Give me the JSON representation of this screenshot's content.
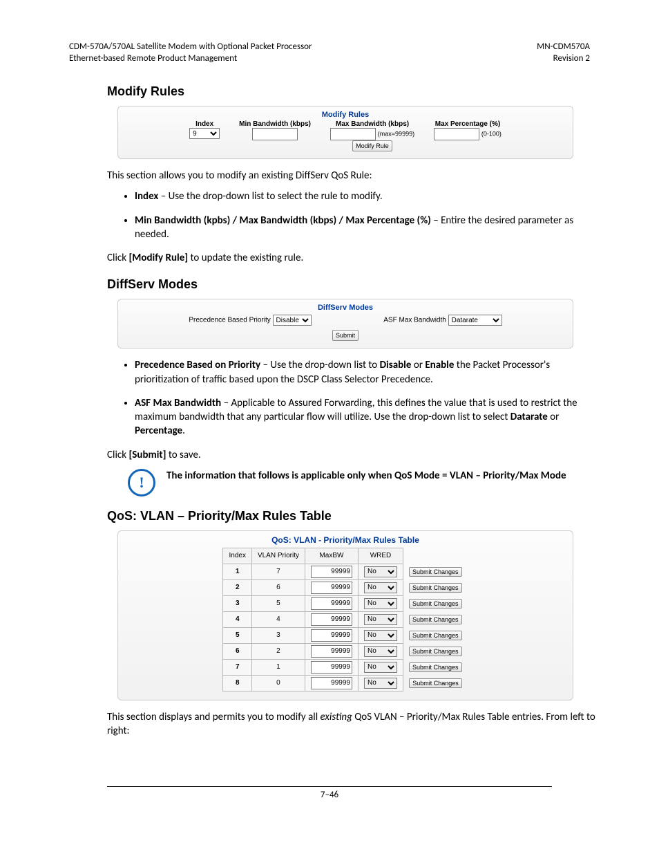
{
  "header": {
    "left1": "CDM-570A/570AL Satellite Modem with Optional Packet Processor",
    "left2": "Ethernet-based Remote Product Management",
    "right1": "MN-CDM570A",
    "right2": "Revision 2"
  },
  "sectionModifyRules": "Modify Rules",
  "modifyRulesPanel": {
    "title": "Modify Rules",
    "col1": "Index",
    "col2": "Min Bandwidth (kbps)",
    "col3": "Max Bandwidth (kbps)",
    "col4": "Max Percentage (%)",
    "indexValue": "9",
    "maxBwHint": "(max=99999)",
    "pctHint": "(0-100)",
    "buttonLabel": "Modify Rule"
  },
  "intro1": "This section allows you to modify an existing DiffServ QoS Rule:",
  "bullets1": [
    {
      "b": "Index",
      "t": " – Use the drop-down list to select the rule to modify."
    },
    {
      "b": "Min Bandwidth (kpbs) / Max Bandwidth (kbps) / Max Percentage (%)",
      "t": " – Entire the desired parameter as needed."
    }
  ],
  "clickModify_a": "Click ",
  "clickModify_b": "[Modify Rule]",
  "clickModify_c": " to update the existing rule.",
  "sectionDiffServ": "DiffServ Modes",
  "diffservPanel": {
    "title": "DiffServ Modes",
    "label1": "Precedence Based Priority",
    "sel1": "Disable",
    "label2": "ASF Max Bandwidth",
    "sel2": "Datarate",
    "submit": "Submit"
  },
  "bullets2": [
    {
      "b": "Precedence Based on Priority",
      "t1": " – Use the drop-down list to ",
      "b2": "Disable",
      "t2": " or ",
      "b3": "Enable",
      "t3": " the Packet Processor's prioritization of  traffic based upon the DSCP Class Selector Precedence."
    },
    {
      "b": "ASF Max Bandwidth",
      "t1": " – Applicable to Assured Forwarding, this defines the value that is used to restrict the maximum bandwidth that any particular flow will utilize. Use the drop-down list to select ",
      "b2": "Datarate",
      "t2": " or ",
      "b3": "Percentage",
      "t3": "."
    }
  ],
  "clickSubmit_a": "Click ",
  "clickSubmit_b": "[Submit]",
  "clickSubmit_c": " to save.",
  "note_a": "The information that follows is applicable only when QoS Mode = VLAN",
  "note_b": " – Priority/Max Mode",
  "sectionQos": "QoS: VLAN – Priority/Max Rules Table",
  "qosPanel": {
    "title": "QoS: VLAN - Priority/Max Rules Table",
    "headers": [
      "Index",
      "VLAN Priority",
      "MaxBW",
      "WRED"
    ],
    "rows": [
      {
        "idx": "1",
        "pri": "7",
        "bw": "99999",
        "wred": "No"
      },
      {
        "idx": "2",
        "pri": "6",
        "bw": "99999",
        "wred": "No"
      },
      {
        "idx": "3",
        "pri": "5",
        "bw": "99999",
        "wred": "No"
      },
      {
        "idx": "4",
        "pri": "4",
        "bw": "99999",
        "wred": "No"
      },
      {
        "idx": "5",
        "pri": "3",
        "bw": "99999",
        "wred": "No"
      },
      {
        "idx": "6",
        "pri": "2",
        "bw": "99999",
        "wred": "No"
      },
      {
        "idx": "7",
        "pri": "1",
        "bw": "99999",
        "wred": "No"
      },
      {
        "idx": "8",
        "pri": "0",
        "bw": "99999",
        "wred": "No"
      }
    ],
    "submitLabel": "Submit Changes"
  },
  "outro_a": "This section displays and permits you to modify all ",
  "outro_i": "existing",
  "outro_b": " QoS  VLAN – Priority/Max Rules Table entries. From left to right:",
  "pageNumber": "7–46"
}
